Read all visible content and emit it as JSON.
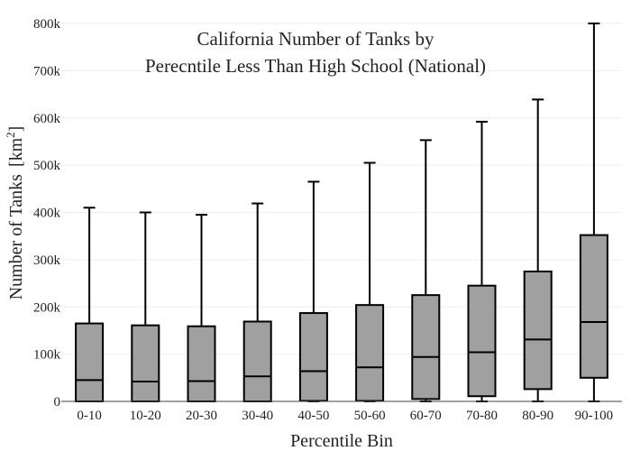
{
  "chart_data": {
    "type": "box",
    "title_lines": [
      "California Number of Tanks by",
      "Perecntile Less Than High School (National)"
    ],
    "xlabel": "Percentile Bin",
    "ylabel": "Number of Tanks",
    "ylabel_unit": "[km",
    "ylabel_unit_sup": "2",
    "ylabel_unit_close": "]",
    "ylim": [
      0,
      800000
    ],
    "yticks": [
      0,
      100000,
      200000,
      300000,
      400000,
      500000,
      600000,
      700000,
      800000
    ],
    "ytick_labels": [
      "0",
      "100k",
      "200k",
      "300k",
      "400k",
      "500k",
      "600k",
      "700k",
      "800k"
    ],
    "grid": true,
    "categories": [
      "0-10",
      "10-20",
      "20-30",
      "30-40",
      "40-50",
      "50-60",
      "60-70",
      "70-80",
      "80-90",
      "90-100"
    ],
    "boxes": [
      {
        "min": 0,
        "q1": 0,
        "median": 45000,
        "q3": 165000,
        "max": 410000
      },
      {
        "min": 0,
        "q1": 0,
        "median": 42000,
        "q3": 161000,
        "max": 400000
      },
      {
        "min": 0,
        "q1": 0,
        "median": 43000,
        "q3": 159000,
        "max": 395000
      },
      {
        "min": 0,
        "q1": 0,
        "median": 53000,
        "q3": 169000,
        "max": 419000
      },
      {
        "min": 0,
        "q1": 1000,
        "median": 64000,
        "q3": 187000,
        "max": 465000
      },
      {
        "min": 0,
        "q1": 1000,
        "median": 72000,
        "q3": 204000,
        "max": 505000
      },
      {
        "min": 0,
        "q1": 5000,
        "median": 94000,
        "q3": 225000,
        "max": 553000
      },
      {
        "min": 0,
        "q1": 11000,
        "median": 104000,
        "q3": 245000,
        "max": 592000
      },
      {
        "min": 0,
        "q1": 26000,
        "median": 131000,
        "q3": 275000,
        "max": 639000
      },
      {
        "min": 0,
        "q1": 50000,
        "median": 168000,
        "q3": 352000,
        "max": 800000
      }
    ],
    "colors": {
      "box_fill": "#a0a0a0",
      "line": "#000000",
      "grid": "#eeeeee",
      "axis": "#444444"
    }
  }
}
